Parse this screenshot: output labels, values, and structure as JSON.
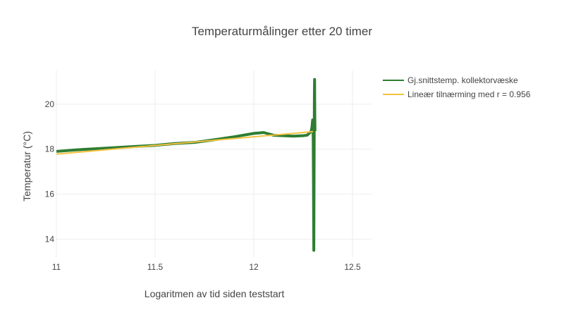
{
  "chart_data": {
    "type": "line",
    "title": "Temperaturmålinger etter 20 timer",
    "xlabel": "Logaritmen av tid siden teststart",
    "ylabel": "Temperatur (°C)",
    "xlim": [
      11,
      12.6
    ],
    "ylim": [
      13.2,
      21.5
    ],
    "x_ticks": [
      11,
      11.5,
      12,
      12.5
    ],
    "x_tick_labels": [
      "11",
      "11.5",
      "12",
      "12.5"
    ],
    "y_ticks": [
      14,
      16,
      18,
      20
    ],
    "y_tick_labels": [
      "14",
      "16",
      "18",
      "20"
    ],
    "grid": true,
    "legend_position": "top-right",
    "series": [
      {
        "name": "Gj.snittstemp. kollektorvæske",
        "color": "#2e7d32",
        "x": [
          11.0,
          11.1,
          11.2,
          11.3,
          11.4,
          11.5,
          11.6,
          11.7,
          11.8,
          11.9,
          12.0,
          12.05,
          12.1,
          12.15,
          12.2,
          12.25,
          12.27,
          12.28,
          12.29,
          12.295,
          12.298,
          12.3,
          12.301,
          12.302,
          12.303,
          12.304,
          12.305,
          12.306,
          12.307,
          12.308,
          12.309,
          12.31
        ],
        "y": [
          17.9,
          17.97,
          18.02,
          18.07,
          18.12,
          18.17,
          18.25,
          18.3,
          18.42,
          18.55,
          18.7,
          18.74,
          18.62,
          18.6,
          18.58,
          18.6,
          18.62,
          18.7,
          18.78,
          19.0,
          19.3,
          19.1,
          18.4,
          17.0,
          15.2,
          13.5,
          16.0,
          18.5,
          20.5,
          21.1,
          19.5,
          18.8
        ]
      },
      {
        "name": "Lineær tilnærming med r = 0.956",
        "color": "#f5c242",
        "x": [
          11.0,
          12.3
        ],
        "y": [
          17.78,
          18.78
        ]
      }
    ]
  }
}
